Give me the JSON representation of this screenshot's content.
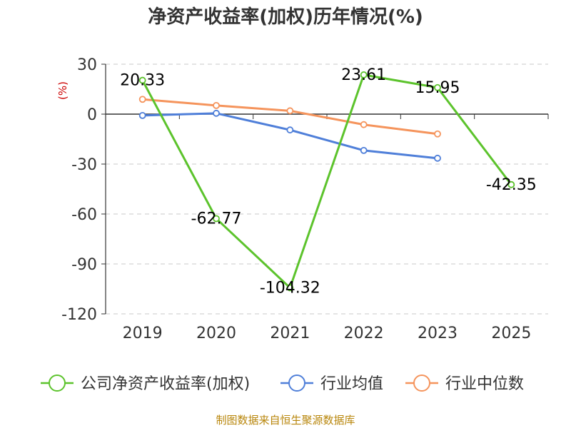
{
  "chart_data": {
    "type": "line",
    "title": "净资产收益率(加权)历年情况(%)",
    "ylabel": "(%)",
    "categories": [
      "2019",
      "2020",
      "2021",
      "2022",
      "2023",
      "2025"
    ],
    "y_ticks": [
      "30",
      "0",
      "-30",
      "-60",
      "-90",
      "-120"
    ],
    "ylim": [
      -120,
      30
    ],
    "grid": true,
    "legend_position": "bottom",
    "series": [
      {
        "name": "公司净资产收益率(加权)",
        "color": "#5cc32c",
        "values": [
          20.33,
          -62.77,
          -104.32,
          23.61,
          15.95,
          -42.35
        ],
        "labels": [
          "20.33",
          "-62.77",
          "-104.32",
          "23.61",
          "15.95",
          "-42.35"
        ]
      },
      {
        "name": "行业均值",
        "color": "#4f7fd9",
        "values": [
          -0.8,
          0.5,
          -9.5,
          -21.8,
          -26.5,
          null
        ]
      },
      {
        "name": "行业中位数",
        "color": "#f5945c",
        "values": [
          8.9,
          5.2,
          2.0,
          -6.3,
          -11.9,
          null
        ]
      }
    ],
    "source": "制图数据来自恒生聚源数据库"
  }
}
